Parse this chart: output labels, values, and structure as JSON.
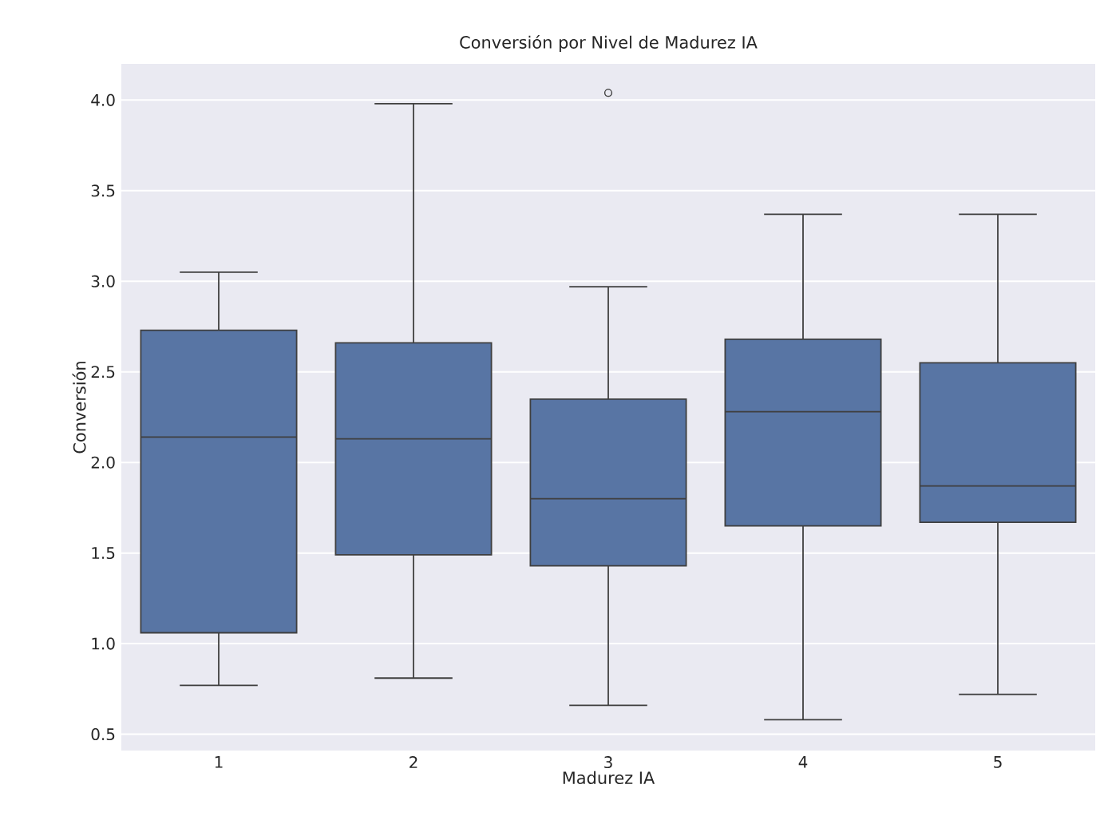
{
  "chart_data": {
    "type": "box",
    "title": "Conversión por Nivel de Madurez IA",
    "xlabel": "Madurez IA",
    "ylabel": "Conversión",
    "categories": [
      "1",
      "2",
      "3",
      "4",
      "5"
    ],
    "boxes": [
      {
        "low": 0.77,
        "q1": 1.06,
        "median": 2.14,
        "q3": 2.73,
        "high": 3.05
      },
      {
        "low": 0.81,
        "q1": 1.49,
        "median": 2.13,
        "q3": 2.66,
        "high": 3.98
      },
      {
        "low": 0.66,
        "q1": 1.43,
        "median": 1.8,
        "q3": 2.35,
        "high": 2.97,
        "outliers": [
          4.04
        ]
      },
      {
        "low": 0.58,
        "q1": 1.65,
        "median": 2.28,
        "q3": 2.68,
        "high": 3.37
      },
      {
        "low": 0.72,
        "q1": 1.67,
        "median": 1.87,
        "q3": 2.55,
        "high": 3.37
      }
    ],
    "color": "#5875a4",
    "ylim": [
      0.41,
      4.2
    ],
    "yticks": [
      0.5,
      {
        "value": 1,
        "label": "1.0"
      },
      1.5,
      {
        "value": 2,
        "label": "2.0"
      },
      2.5,
      {
        "value": 3,
        "label": "3.0"
      },
      3.5,
      {
        "value": 4,
        "label": "4.0"
      }
    ],
    "grid": "y"
  }
}
